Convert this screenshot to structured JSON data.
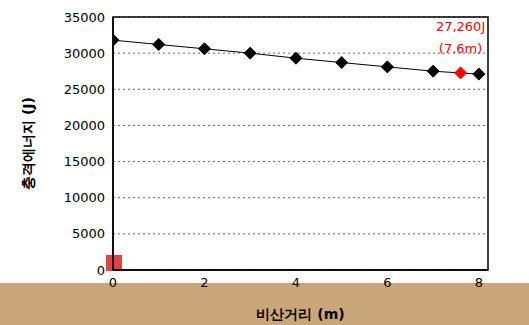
{
  "chart_data": {
    "type": "line",
    "x_label": "비산거리 (m)",
    "y_label": "충격에너지 (J)",
    "x": [
      0,
      1,
      2,
      3,
      4,
      5,
      6,
      7,
      7.6,
      8
    ],
    "values": [
      31800,
      31200,
      30600,
      30000,
      29300,
      28700,
      28100,
      27500,
      27260,
      27100
    ],
    "color": "#000000",
    "marker": "diamond",
    "xlim": [
      0,
      8.2
    ],
    "xticks": [
      0,
      2,
      4,
      6,
      8
    ],
    "ylim": [
      0,
      35000
    ],
    "yticks": [
      0,
      5000,
      10000,
      15000,
      20000,
      25000,
      30000,
      35000
    ],
    "grid": true,
    "annotations": [
      {
        "x": 7.6,
        "y": 27260,
        "text": [
          "27,260J",
          "(7.6m)"
        ],
        "color": "#ff0000"
      }
    ]
  }
}
